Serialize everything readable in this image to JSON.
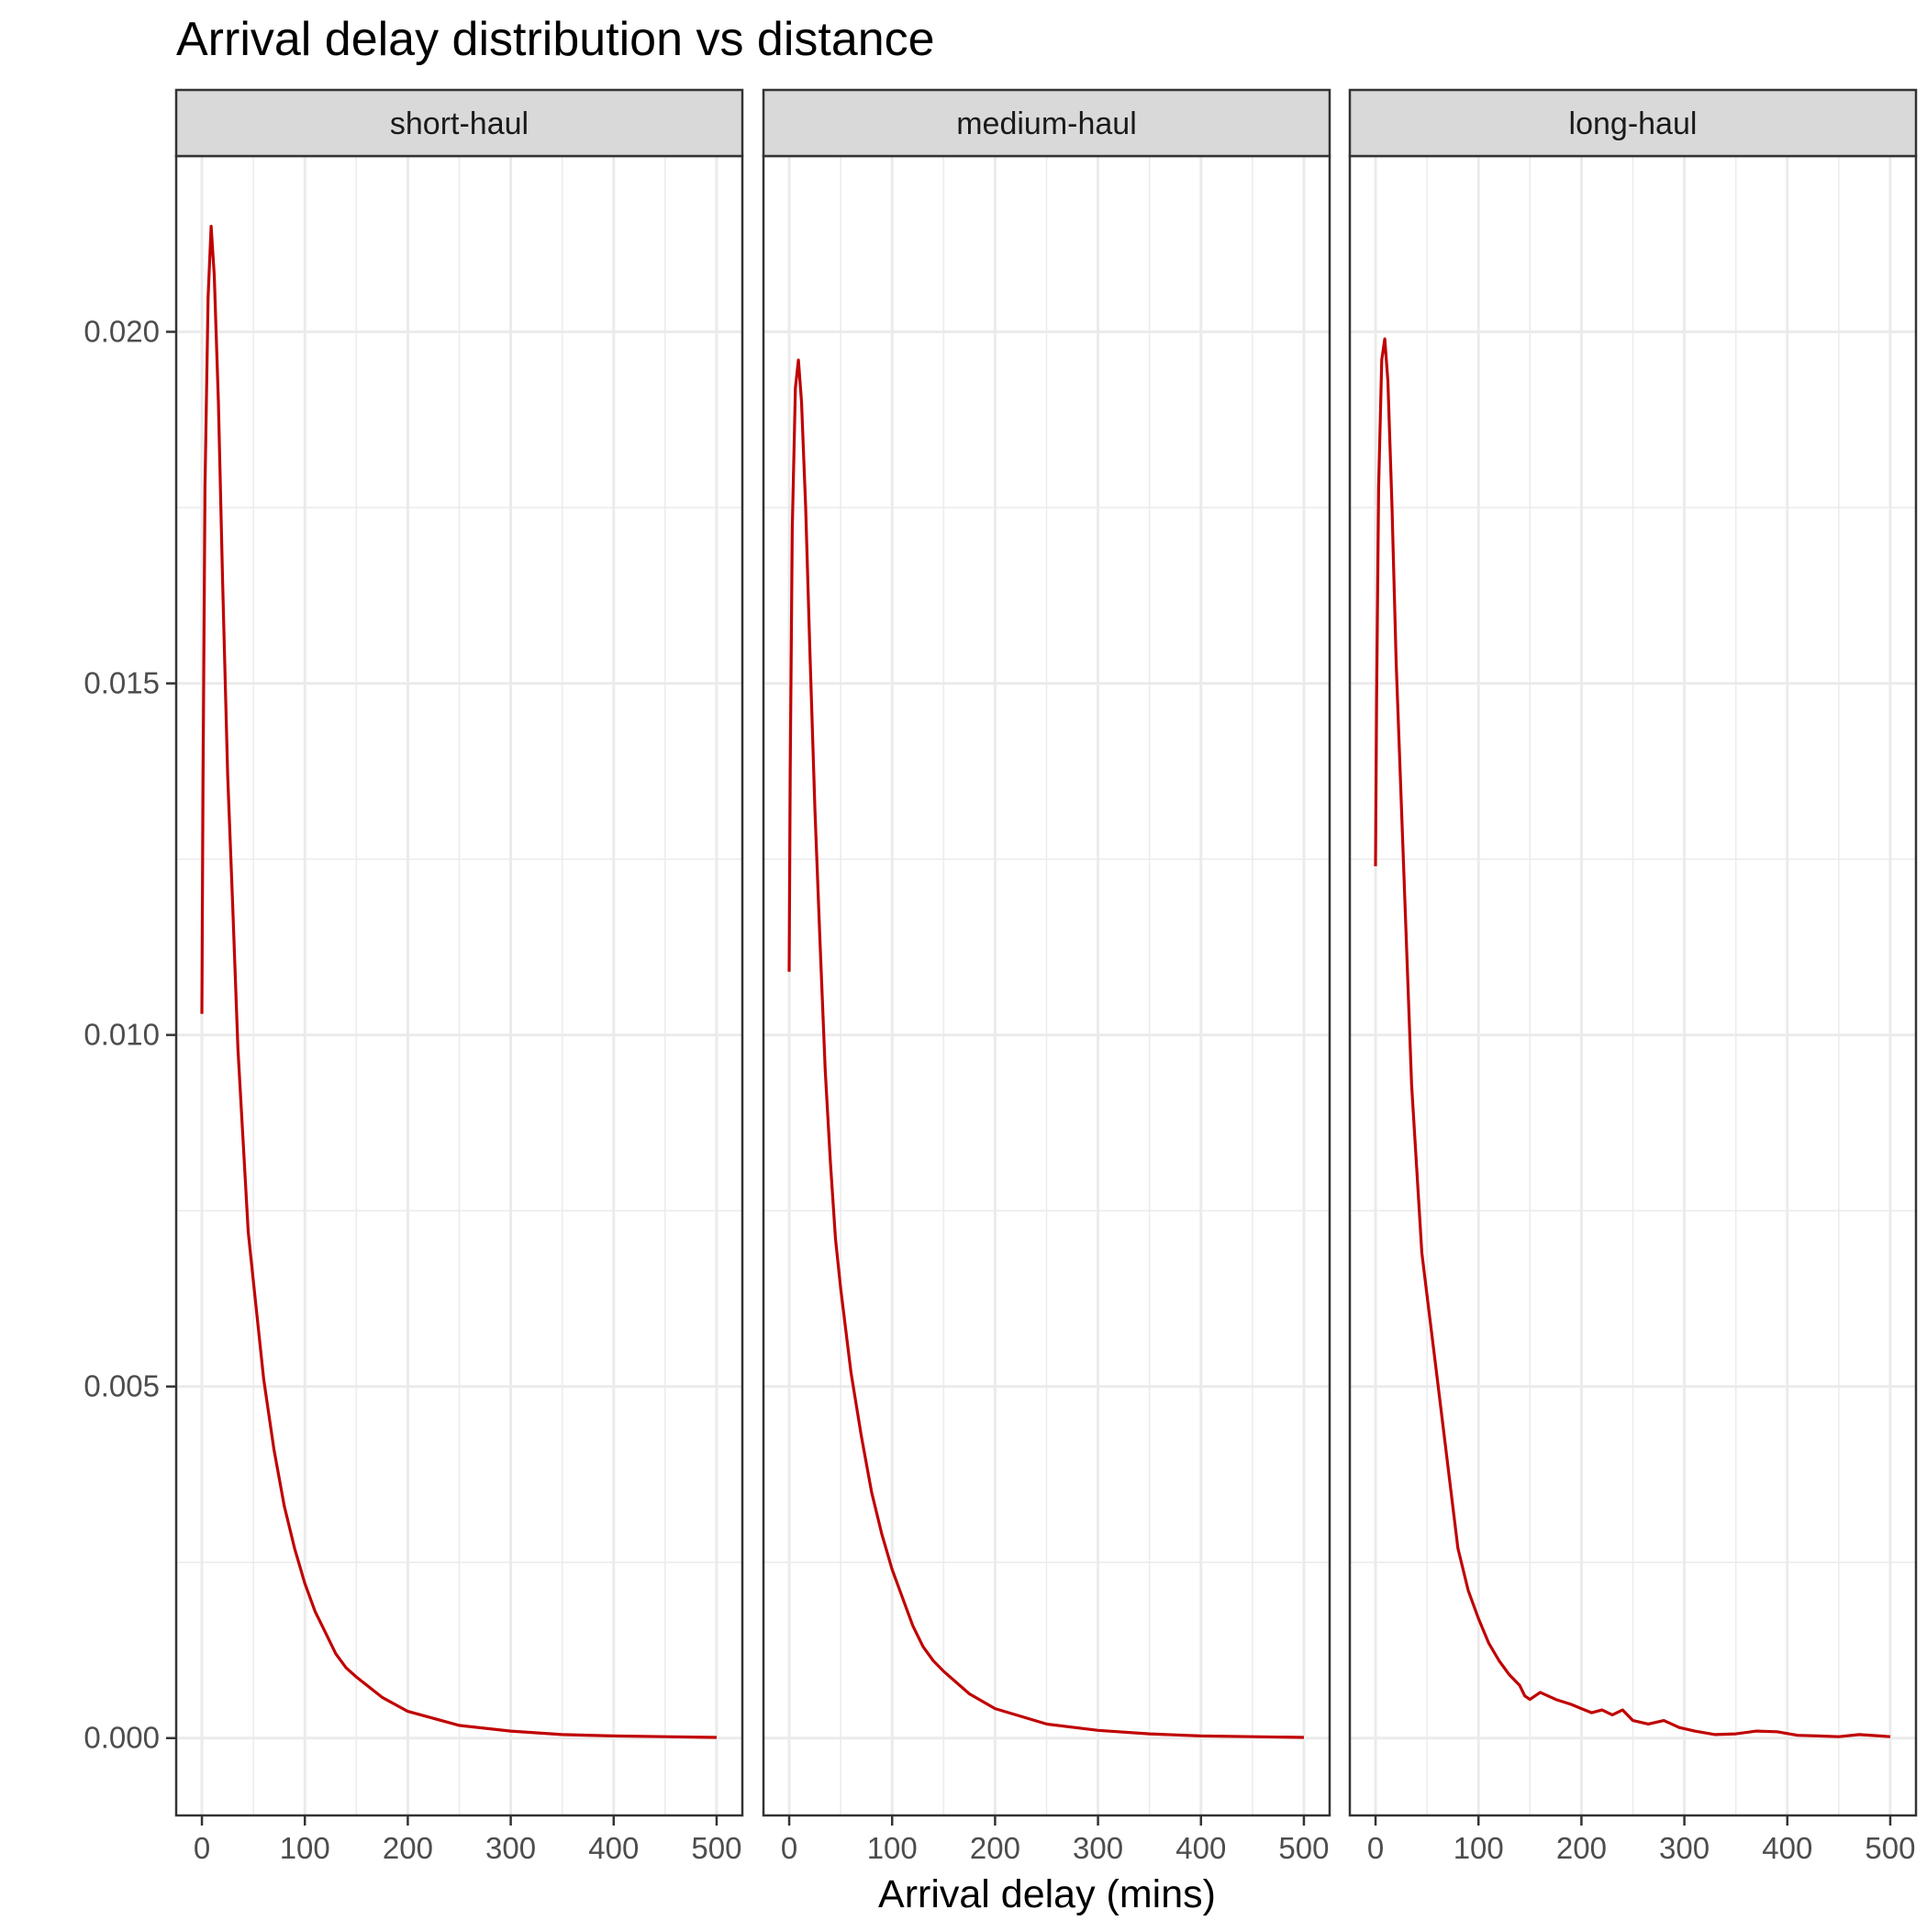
{
  "chart_data": {
    "type": "line",
    "title": "Arrival delay distribution vs distance",
    "xlabel": "Arrival delay (mins)",
    "ylabel": "",
    "xlim": [
      -25,
      525
    ],
    "ylim": [
      -0.0011,
      0.0225
    ],
    "x_ticks": [
      0,
      100,
      200,
      300,
      400,
      500
    ],
    "y_ticks": [
      0.0,
      0.005,
      0.01,
      0.015,
      0.02
    ],
    "y_tick_labels": [
      "0.000",
      "0.005",
      "0.010",
      "0.015",
      "0.020"
    ],
    "line_color": "#c00000",
    "grid": true,
    "panels": [
      {
        "label": "short-haul",
        "x": [
          0,
          1,
          3,
          6,
          9,
          12,
          16,
          20,
          25,
          30,
          35,
          40,
          45,
          50,
          60,
          70,
          80,
          90,
          100,
          110,
          120,
          130,
          140,
          150,
          175,
          200,
          250,
          300,
          350,
          400,
          450,
          500
        ],
        "y": [
          0.0103,
          0.0135,
          0.0178,
          0.0205,
          0.0215,
          0.0208,
          0.019,
          0.0165,
          0.0137,
          0.0118,
          0.0098,
          0.0085,
          0.0072,
          0.0065,
          0.0051,
          0.0041,
          0.0033,
          0.0027,
          0.0022,
          0.0018,
          0.0015,
          0.0012,
          0.001,
          0.00087,
          0.00058,
          0.00038,
          0.00018,
          0.0001,
          5e-05,
          3e-05,
          2e-05,
          1e-05
        ]
      },
      {
        "label": "medium-haul",
        "x": [
          0,
          1,
          3,
          6,
          9,
          12,
          16,
          20,
          25,
          30,
          35,
          40,
          45,
          50,
          60,
          70,
          80,
          90,
          100,
          110,
          120,
          130,
          140,
          150,
          175,
          200,
          250,
          300,
          350,
          400,
          450,
          500
        ],
        "y": [
          0.0109,
          0.0138,
          0.0172,
          0.0192,
          0.0196,
          0.019,
          0.0175,
          0.0155,
          0.0132,
          0.0113,
          0.0095,
          0.0082,
          0.0071,
          0.0064,
          0.0052,
          0.0043,
          0.0035,
          0.0029,
          0.0024,
          0.002,
          0.0016,
          0.0013,
          0.0011,
          0.00095,
          0.00063,
          0.00042,
          0.0002,
          0.00011,
          6e-05,
          3e-05,
          2e-05,
          1e-05
        ]
      },
      {
        "label": "long-haul",
        "x": [
          0,
          1,
          3,
          6,
          9,
          12,
          16,
          20,
          25,
          30,
          35,
          40,
          45,
          50,
          60,
          70,
          80,
          90,
          100,
          110,
          120,
          130,
          140,
          145,
          150,
          160,
          175,
          190,
          200,
          210,
          220,
          230,
          240,
          250,
          265,
          280,
          295,
          310,
          330,
          350,
          370,
          390,
          410,
          430,
          450,
          470,
          490,
          500
        ],
        "y": [
          0.0124,
          0.0148,
          0.0178,
          0.0196,
          0.0199,
          0.0193,
          0.0175,
          0.0153,
          0.0133,
          0.0113,
          0.0093,
          0.0081,
          0.0069,
          0.0063,
          0.0051,
          0.0039,
          0.0027,
          0.0021,
          0.0017,
          0.00135,
          0.0011,
          0.0009,
          0.00075,
          0.0006,
          0.00055,
          0.00065,
          0.00055,
          0.00048,
          0.00042,
          0.00036,
          0.0004,
          0.00033,
          0.0004,
          0.00025,
          0.0002,
          0.00025,
          0.00015,
          0.0001,
          5e-05,
          6e-05,
          0.0001,
          9e-05,
          4e-05,
          3e-05,
          2e-05,
          5e-05,
          3e-05,
          2e-05
        ]
      }
    ]
  }
}
